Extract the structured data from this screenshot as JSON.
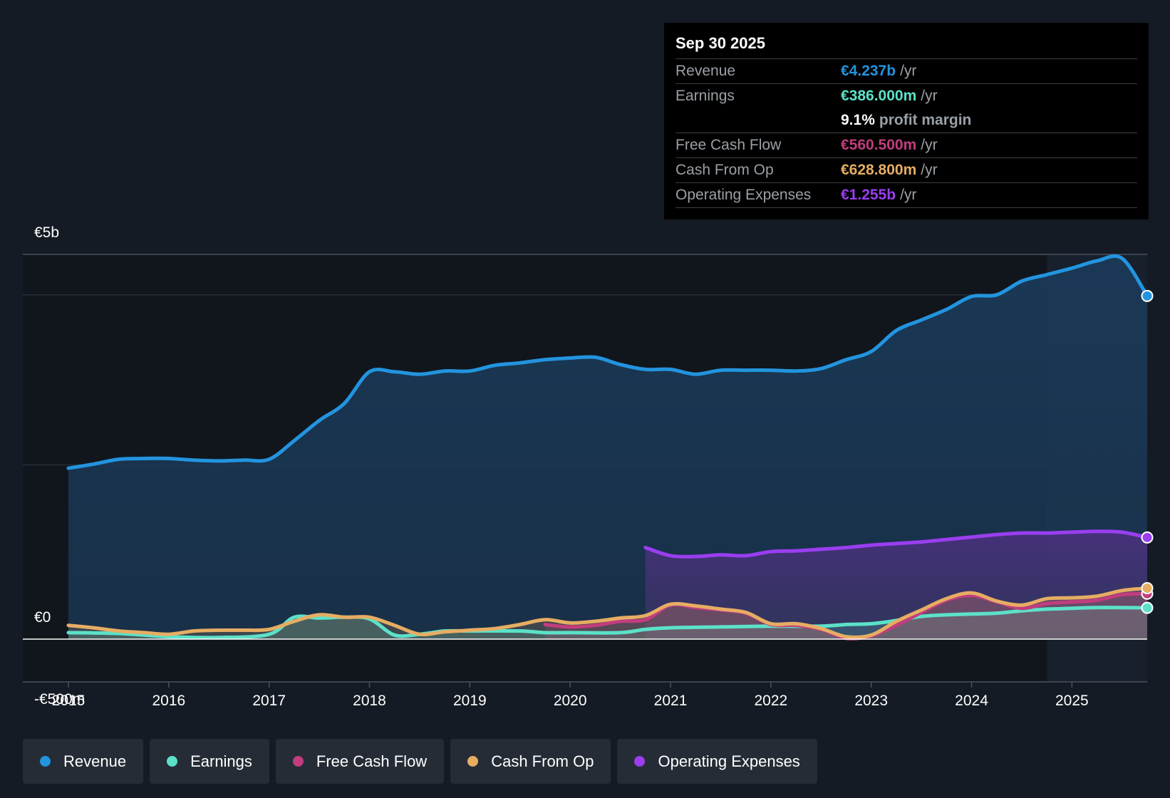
{
  "chart_data": {
    "type": "area",
    "x_start": 2015,
    "x_end": 2025.75,
    "ylim": [
      -500,
      4750
    ],
    "y_tick_labels": [
      "€5b",
      "€0",
      "-€500m"
    ],
    "y_ticks": [
      4750,
      0,
      -500
    ],
    "grid_values": [
      4250,
      2150
    ],
    "x_tick_labels": [
      "2015",
      "2016",
      "2017",
      "2018",
      "2019",
      "2020",
      "2021",
      "2022",
      "2023",
      "2024",
      "2025"
    ],
    "x_ticks": [
      2015,
      2016,
      2017,
      2018,
      2019,
      2020,
      2021,
      2022,
      2023,
      2024,
      2025
    ],
    "forecast_start": 2024.75,
    "series": [
      {
        "name": "Revenue",
        "color": "#2394df",
        "points": [
          [
            2015,
            2110
          ],
          [
            2015.25,
            2160
          ],
          [
            2015.5,
            2220
          ],
          [
            2015.75,
            2230
          ],
          [
            2016,
            2230
          ],
          [
            2016.25,
            2210
          ],
          [
            2016.5,
            2200
          ],
          [
            2016.75,
            2210
          ],
          [
            2017,
            2220
          ],
          [
            2017.25,
            2450
          ],
          [
            2017.5,
            2700
          ],
          [
            2017.75,
            2910
          ],
          [
            2018,
            3300
          ],
          [
            2018.25,
            3300
          ],
          [
            2018.5,
            3270
          ],
          [
            2018.75,
            3310
          ],
          [
            2019,
            3310
          ],
          [
            2019.25,
            3380
          ],
          [
            2019.5,
            3410
          ],
          [
            2019.75,
            3450
          ],
          [
            2020,
            3470
          ],
          [
            2020.25,
            3480
          ],
          [
            2020.5,
            3390
          ],
          [
            2020.75,
            3330
          ],
          [
            2021,
            3330
          ],
          [
            2021.25,
            3270
          ],
          [
            2021.5,
            3320
          ],
          [
            2021.75,
            3320
          ],
          [
            2022,
            3320
          ],
          [
            2022.25,
            3310
          ],
          [
            2022.5,
            3340
          ],
          [
            2022.75,
            3450
          ],
          [
            2023,
            3550
          ],
          [
            2023.25,
            3810
          ],
          [
            2023.5,
            3940
          ],
          [
            2023.75,
            4070
          ],
          [
            2024,
            4230
          ],
          [
            2024.25,
            4250
          ],
          [
            2024.5,
            4420
          ],
          [
            2024.75,
            4500
          ],
          [
            2025,
            4580
          ],
          [
            2025.25,
            4670
          ],
          [
            2025.5,
            4700
          ],
          [
            2025.75,
            4237
          ]
        ]
      },
      {
        "name": "Operating Expenses",
        "color": "#9a3ef0",
        "points": [
          [
            2020.75,
            1130
          ],
          [
            2021,
            1030
          ],
          [
            2021.25,
            1020
          ],
          [
            2021.5,
            1040
          ],
          [
            2021.75,
            1030
          ],
          [
            2022,
            1080
          ],
          [
            2022.25,
            1090
          ],
          [
            2022.5,
            1110
          ],
          [
            2022.75,
            1130
          ],
          [
            2023,
            1160
          ],
          [
            2023.25,
            1180
          ],
          [
            2023.5,
            1200
          ],
          [
            2023.75,
            1230
          ],
          [
            2024,
            1260
          ],
          [
            2024.25,
            1290
          ],
          [
            2024.5,
            1310
          ],
          [
            2024.75,
            1310
          ],
          [
            2025,
            1320
          ],
          [
            2025.25,
            1330
          ],
          [
            2025.5,
            1320
          ],
          [
            2025.75,
            1255
          ]
        ]
      },
      {
        "name": "Earnings",
        "color": "#5ce1c8",
        "points": [
          [
            2015,
            80
          ],
          [
            2015.5,
            70
          ],
          [
            2016,
            30
          ],
          [
            2016.5,
            20
          ],
          [
            2017,
            60
          ],
          [
            2017.25,
            270
          ],
          [
            2017.5,
            260
          ],
          [
            2017.75,
            270
          ],
          [
            2018,
            250
          ],
          [
            2018.25,
            50
          ],
          [
            2018.5,
            60
          ],
          [
            2018.75,
            100
          ],
          [
            2019,
            100
          ],
          [
            2019.5,
            100
          ],
          [
            2019.75,
            80
          ],
          [
            2020,
            80
          ],
          [
            2020.5,
            80
          ],
          [
            2020.75,
            120
          ],
          [
            2021,
            140
          ],
          [
            2021.5,
            150
          ],
          [
            2022,
            160
          ],
          [
            2022.5,
            160
          ],
          [
            2022.75,
            180
          ],
          [
            2023,
            190
          ],
          [
            2023.25,
            230
          ],
          [
            2023.5,
            280
          ],
          [
            2023.75,
            300
          ],
          [
            2024,
            310
          ],
          [
            2024.25,
            320
          ],
          [
            2024.5,
            350
          ],
          [
            2024.75,
            370
          ],
          [
            2025,
            380
          ],
          [
            2025.25,
            390
          ],
          [
            2025.75,
            386
          ]
        ]
      },
      {
        "name": "Free Cash Flow",
        "color": "#c23d7e",
        "points": [
          [
            2019.75,
            180
          ],
          [
            2020,
            150
          ],
          [
            2020.25,
            170
          ],
          [
            2020.5,
            220
          ],
          [
            2020.75,
            240
          ],
          [
            2021,
            420
          ],
          [
            2021.25,
            390
          ],
          [
            2021.5,
            360
          ],
          [
            2021.75,
            320
          ],
          [
            2022,
            180
          ],
          [
            2022.25,
            170
          ],
          [
            2022.5,
            120
          ],
          [
            2022.75,
            10
          ],
          [
            2023,
            40
          ],
          [
            2023.25,
            170
          ],
          [
            2023.5,
            330
          ],
          [
            2023.75,
            480
          ],
          [
            2024,
            540
          ],
          [
            2024.25,
            460
          ],
          [
            2024.5,
            380
          ],
          [
            2024.75,
            440
          ],
          [
            2025,
            460
          ],
          [
            2025.25,
            480
          ],
          [
            2025.5,
            550
          ],
          [
            2025.75,
            560.5
          ]
        ]
      },
      {
        "name": "Cash From Op",
        "color": "#e6ad63",
        "points": [
          [
            2015,
            170
          ],
          [
            2015.25,
            140
          ],
          [
            2015.5,
            100
          ],
          [
            2015.75,
            80
          ],
          [
            2016,
            60
          ],
          [
            2016.25,
            100
          ],
          [
            2016.5,
            110
          ],
          [
            2016.75,
            110
          ],
          [
            2017,
            120
          ],
          [
            2017.25,
            220
          ],
          [
            2017.5,
            300
          ],
          [
            2017.75,
            270
          ],
          [
            2018,
            270
          ],
          [
            2018.25,
            170
          ],
          [
            2018.5,
            60
          ],
          [
            2018.75,
            90
          ],
          [
            2019,
            110
          ],
          [
            2019.25,
            130
          ],
          [
            2019.5,
            180
          ],
          [
            2019.75,
            240
          ],
          [
            2020,
            200
          ],
          [
            2020.25,
            220
          ],
          [
            2020.5,
            260
          ],
          [
            2020.75,
            290
          ],
          [
            2021,
            430
          ],
          [
            2021.25,
            410
          ],
          [
            2021.5,
            370
          ],
          [
            2021.75,
            330
          ],
          [
            2022,
            190
          ],
          [
            2022.25,
            190
          ],
          [
            2022.5,
            130
          ],
          [
            2022.75,
            30
          ],
          [
            2023,
            50
          ],
          [
            2023.25,
            220
          ],
          [
            2023.5,
            360
          ],
          [
            2023.75,
            500
          ],
          [
            2024,
            570
          ],
          [
            2024.25,
            470
          ],
          [
            2024.5,
            420
          ],
          [
            2024.75,
            500
          ],
          [
            2025,
            510
          ],
          [
            2025.25,
            530
          ],
          [
            2025.5,
            600
          ],
          [
            2025.75,
            628.8
          ]
        ]
      }
    ],
    "tooltip": {
      "date": "Sep 30 2025",
      "rows": [
        {
          "label": "Revenue",
          "value": "€4.237b",
          "unit": "/yr",
          "color": "#2394df"
        },
        {
          "label": "Earnings",
          "value": "€386.000m",
          "unit": "/yr",
          "color": "#5ce1c8"
        },
        {
          "label": "",
          "value": "9.1%",
          "unit": "profit margin",
          "color": "#ffffff"
        },
        {
          "label": "Free Cash Flow",
          "value": "€560.500m",
          "unit": "/yr",
          "color": "#c23d7e"
        },
        {
          "label": "Cash From Op",
          "value": "€628.800m",
          "unit": "/yr",
          "color": "#e6ad63"
        },
        {
          "label": "Operating Expenses",
          "value": "€1.255b",
          "unit": "/yr",
          "color": "#9a3ef0"
        }
      ]
    },
    "legend": [
      {
        "label": "Revenue",
        "color": "#2394df"
      },
      {
        "label": "Earnings",
        "color": "#5ce1c8"
      },
      {
        "label": "Free Cash Flow",
        "color": "#c23d7e"
      },
      {
        "label": "Cash From Op",
        "color": "#e6ad63"
      },
      {
        "label": "Operating Expenses",
        "color": "#9a3ef0"
      }
    ]
  }
}
